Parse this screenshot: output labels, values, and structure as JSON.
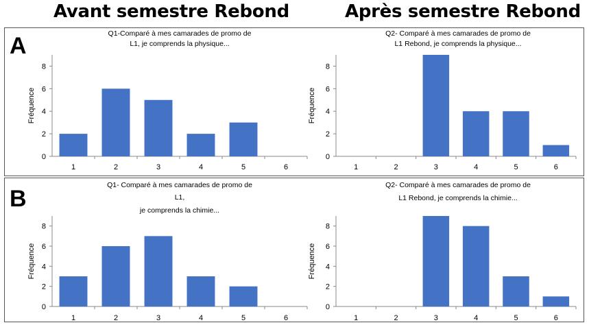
{
  "headers": {
    "left": "Avant semestre Rebond",
    "right": "Après semestre Rebond"
  },
  "panels": {
    "a": "A",
    "b": "B"
  },
  "chart_data": [
    {
      "id": "A-left",
      "type": "bar",
      "title_lines": [
        "Q1-Comparé à mes camarades de promo de",
        "L1, je comprends la physique..."
      ],
      "ylabel": "Fréquence",
      "categories": [
        "1",
        "2",
        "3",
        "4",
        "5",
        "6"
      ],
      "values": [
        2,
        6,
        5,
        2,
        3,
        0
      ],
      "yticks": [
        "0",
        "2",
        "4",
        "6",
        "8"
      ],
      "ylim": [
        0,
        9
      ],
      "grid": false,
      "color": "#4472C4"
    },
    {
      "id": "A-right",
      "type": "bar",
      "title_lines": [
        "Q2- Comparé à mes camarades de promo de",
        "L1 Rebond, je comprends  la physique..."
      ],
      "ylabel": "Fréquence",
      "categories": [
        "1",
        "2",
        "3",
        "4",
        "5",
        "6"
      ],
      "values": [
        0,
        0,
        9,
        4,
        4,
        1
      ],
      "yticks": [
        "0",
        "2",
        "4",
        "6",
        "8"
      ],
      "ylim": [
        0,
        9
      ],
      "grid": false,
      "color": "#4472C4"
    },
    {
      "id": "B-left",
      "type": "bar",
      "title_lines": [
        "Q1- Comparé à mes camarades de promo de",
        "L1,",
        "je comprends  la chimie..."
      ],
      "ylabel": "Fréquence",
      "categories": [
        "1",
        "2",
        "3",
        "4",
        "5",
        "6"
      ],
      "values": [
        3,
        6,
        7,
        3,
        2,
        0
      ],
      "yticks": [
        "0",
        "2",
        "4",
        "6",
        "8"
      ],
      "ylim": [
        0,
        9
      ],
      "grid": false,
      "color": "#4472C4"
    },
    {
      "id": "B-right",
      "type": "bar",
      "title_lines": [
        "Q2- Comparé à mes camarades de promo de",
        "L1 Rebond, je comprends  la chimie..."
      ],
      "ylabel": "Fréquence",
      "categories": [
        "1",
        "2",
        "3",
        "4",
        "5",
        "6"
      ],
      "values": [
        0,
        0,
        9,
        8,
        3,
        1
      ],
      "yticks": [
        "0",
        "2",
        "4",
        "6",
        "8"
      ],
      "ylim": [
        0,
        9
      ],
      "grid": false,
      "color": "#4472C4"
    }
  ]
}
